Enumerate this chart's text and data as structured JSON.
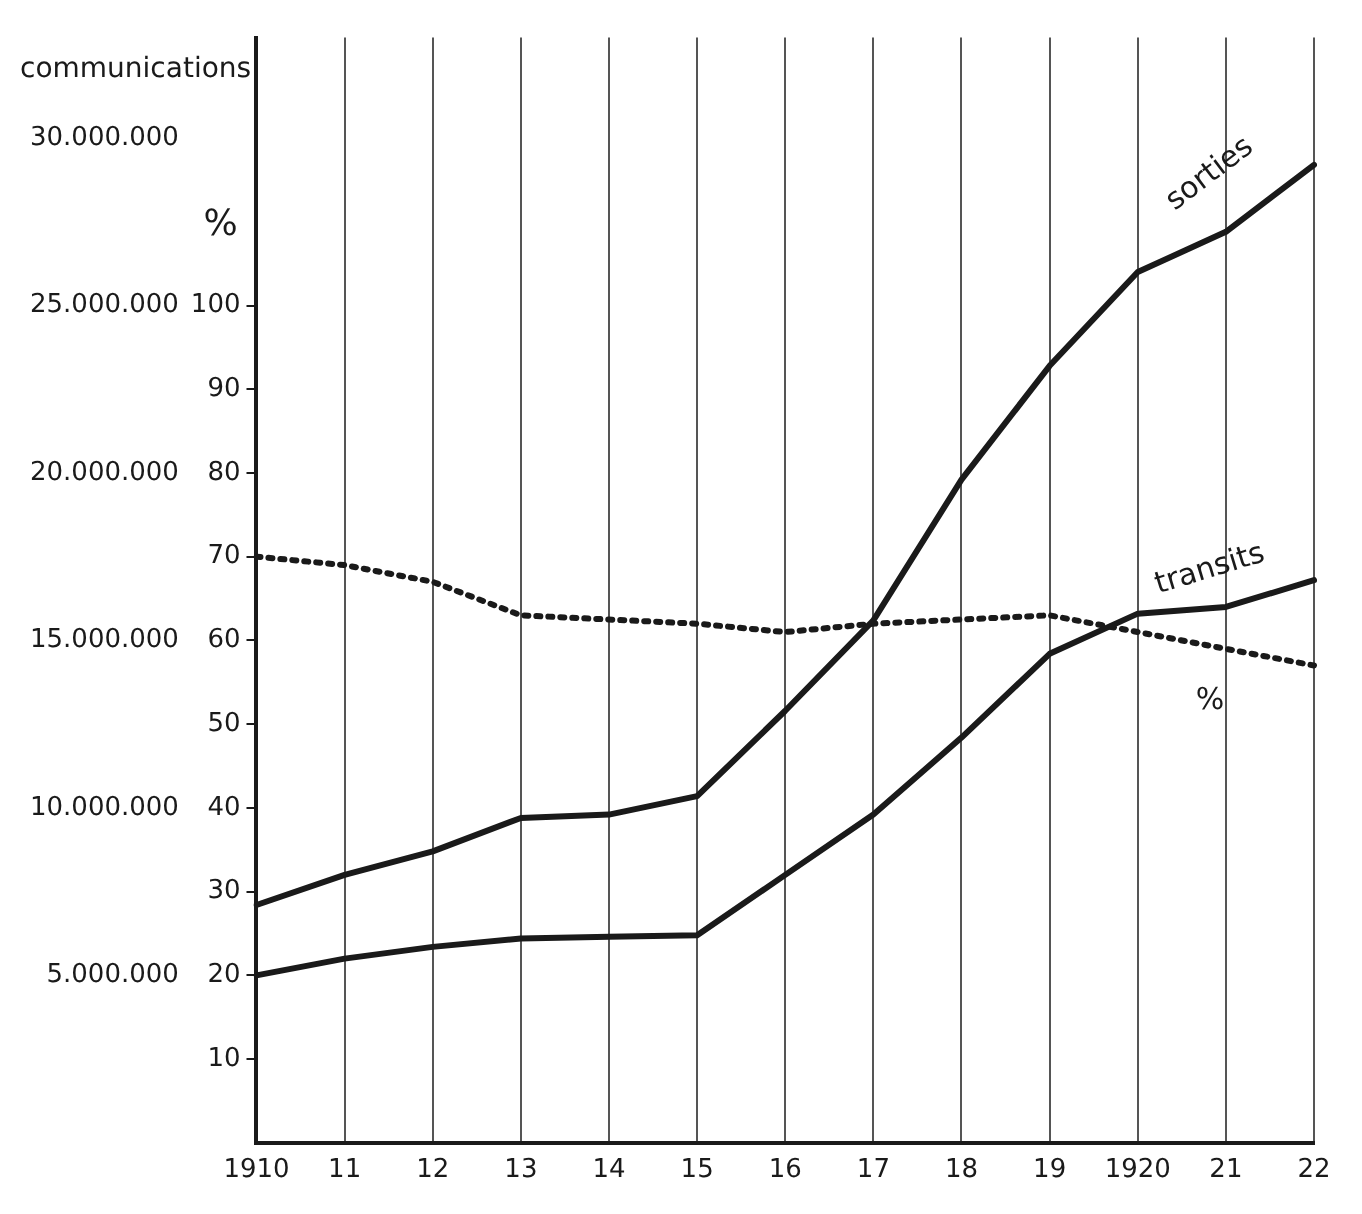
{
  "chart_data": {
    "type": "line",
    "ylabel": "communications",
    "y2label": "%",
    "categories": [
      "1910",
      "11",
      "12",
      "13",
      "14",
      "15",
      "16",
      "17",
      "18",
      "19",
      "1920",
      "21",
      "22"
    ],
    "series": [
      {
        "name": "sorties",
        "color": "#1a1a1a",
        "line_style": "solid",
        "values": [
          7100000,
          8000000,
          8700000,
          9700000,
          9800000,
          10350000,
          12900000,
          15600000,
          19800000,
          23200000,
          26000000,
          27200000,
          29200000
        ]
      },
      {
        "name": "transits",
        "color": "#1a1a1a",
        "line_style": "solid",
        "values": [
          5000000,
          5500000,
          5850000,
          6100000,
          6150000,
          6200000,
          8000000,
          9800000,
          12100000,
          14600000,
          15800000,
          16000000,
          16800000
        ]
      },
      {
        "name": "%",
        "color": "#1a1a1a",
        "line_style": "dotted",
        "axis": "y2",
        "values": [
          70,
          69,
          67,
          63,
          62.5,
          62,
          61,
          62,
          62.5,
          63,
          61,
          59,
          57
        ]
      }
    ],
    "ylim": [
      0,
      33000000
    ],
    "yticks": [
      {
        "value": 5000000,
        "label": "5.000.000"
      },
      {
        "value": 10000000,
        "label": "10.000.000"
      },
      {
        "value": 15000000,
        "label": "15.000.000"
      },
      {
        "value": 20000000,
        "label": "20.000.000"
      },
      {
        "value": 25000000,
        "label": "25.000.000"
      },
      {
        "value": 30000000,
        "label": "30.000.000"
      }
    ],
    "y2lim": [
      0,
      132
    ],
    "y2ticks": [
      10,
      20,
      30,
      40,
      50,
      60,
      70,
      80,
      90,
      100
    ],
    "grid": "x",
    "marker": "none",
    "legend": false
  }
}
